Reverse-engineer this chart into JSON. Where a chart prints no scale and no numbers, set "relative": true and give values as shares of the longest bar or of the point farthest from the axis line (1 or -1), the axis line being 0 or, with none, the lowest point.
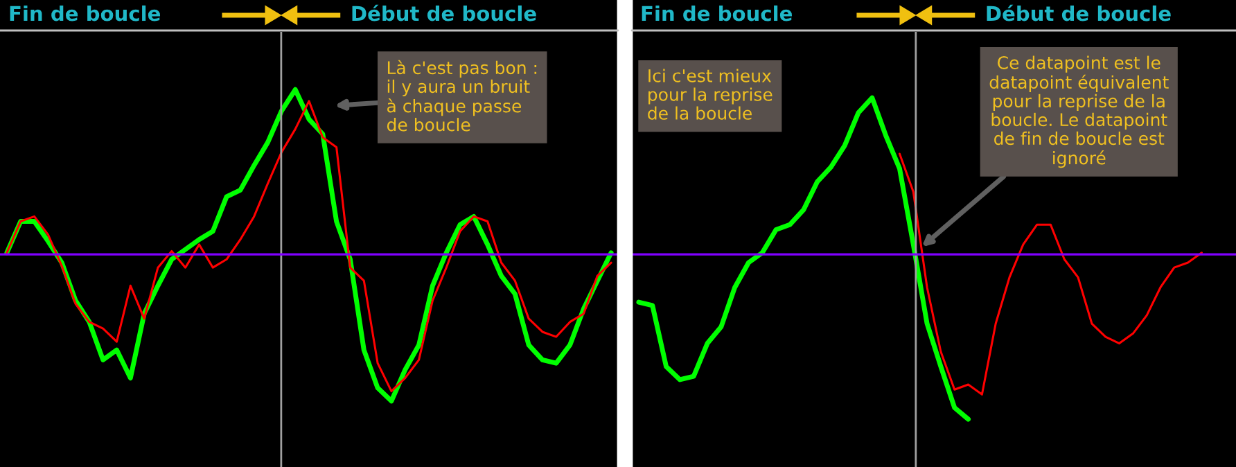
{
  "chart_data": [
    {
      "type": "line",
      "relative": true,
      "annotations": [
        "Fin de boucle",
        "Début de boucle",
        "Là c'est pas bon :\nil y aura un bruit\nà chaque passe\nde boucle"
      ],
      "categories": [
        null,
        null,
        null,
        null,
        null,
        null,
        null,
        null,
        null,
        null,
        null,
        null,
        null,
        null,
        null,
        null,
        null,
        null,
        null,
        null,
        null,
        null,
        null,
        null,
        null,
        null,
        null,
        null,
        null,
        null,
        null,
        null,
        null,
        null,
        null,
        null,
        null,
        null,
        null,
        null,
        null,
        null,
        null,
        null,
        null
      ],
      "ref_lines": [
        {
          "axis": "y",
          "value": 0,
          "color": "#8000ff"
        }
      ],
      "series": [
        {
          "color": "#00ff00",
          "values": [
            0.01,
            0.2,
            0.2,
            0.08,
            -0.05,
            -0.28,
            -0.41,
            -0.64,
            -0.58,
            -0.75,
            -0.36,
            -0.19,
            -0.03,
            0.03,
            0.09,
            0.14,
            0.35,
            0.39,
            0.54,
            0.68,
            0.87,
            1.0,
            0.82,
            0.73,
            0.2,
            -0.03,
            -0.58,
            -0.81,
            -0.89,
            -0.7,
            -0.55,
            -0.19,
            0.01,
            0.18,
            0.23,
            0.06,
            -0.13,
            -0.24,
            -0.55,
            -0.64,
            -0.66,
            -0.55,
            -0.33,
            -0.16,
            0.01
          ]
        },
        {
          "color": "#ff0000",
          "values": [
            0.01,
            0.2,
            0.23,
            0.12,
            -0.07,
            -0.3,
            -0.41,
            -0.45,
            -0.53,
            -0.19,
            -0.39,
            -0.08,
            0.02,
            -0.08,
            0.06,
            -0.08,
            -0.03,
            0.09,
            0.23,
            0.43,
            0.62,
            0.76,
            0.93,
            0.71,
            0.65,
            -0.08,
            -0.16,
            -0.66,
            -0.83,
            -0.75,
            -0.64,
            -0.28,
            -0.08,
            0.14,
            0.23,
            0.2,
            -0.05,
            -0.16,
            -0.39,
            -0.47,
            -0.5,
            -0.41,
            -0.36,
            -0.13,
            -0.05
          ]
        }
      ]
    },
    {
      "type": "line",
      "relative": true,
      "annotations": [
        "Fin de boucle",
        "Début de boucle",
        "Ici c'est mieux\npour la reprise\nde la boucle",
        "Ce datapoint est le\ndatapoint équivalent\npour la reprise de la\nboucle. Le datapoint\nde fin de boucle est\nignoré"
      ],
      "categories": [
        null,
        null,
        null,
        null,
        null,
        null,
        null,
        null,
        null,
        null,
        null,
        null,
        null,
        null,
        null,
        null,
        null,
        null,
        null,
        null,
        null,
        null,
        null,
        null,
        null,
        null,
        null,
        null,
        null,
        null,
        null,
        null,
        null,
        null,
        null,
        null,
        null,
        null,
        null,
        null,
        null,
        null,
        null,
        null
      ],
      "ref_lines": [
        {
          "axis": "y",
          "value": 0,
          "color": "#8000ff"
        }
      ],
      "series": [
        {
          "color": "#00ff00",
          "values": [
            -0.29,
            -0.31,
            -0.68,
            -0.76,
            -0.74,
            -0.54,
            -0.44,
            -0.2,
            -0.05,
            0.01,
            0.15,
            0.18,
            0.27,
            0.44,
            0.53,
            0.66,
            0.86,
            0.95,
            0.72,
            0.52,
            0.06,
            -0.42,
            -0.68,
            -0.93,
            -1.0,
            null,
            null,
            null,
            null,
            null,
            null,
            null,
            null,
            null,
            null,
            null,
            null,
            null,
            null,
            null,
            null,
            null,
            null,
            null
          ]
        },
        {
          "color": "#ff0000",
          "values": [
            null,
            null,
            null,
            null,
            null,
            null,
            null,
            null,
            null,
            null,
            null,
            null,
            null,
            null,
            null,
            null,
            null,
            null,
            null,
            0.61,
            0.38,
            -0.2,
            -0.59,
            -0.82,
            -0.79,
            -0.85,
            -0.42,
            -0.14,
            0.06,
            0.18,
            0.18,
            -0.03,
            -0.14,
            -0.42,
            -0.5,
            -0.54,
            -0.48,
            -0.37,
            -0.2,
            -0.08,
            -0.05,
            0.01,
            null,
            null
          ]
        }
      ]
    }
  ]
}
